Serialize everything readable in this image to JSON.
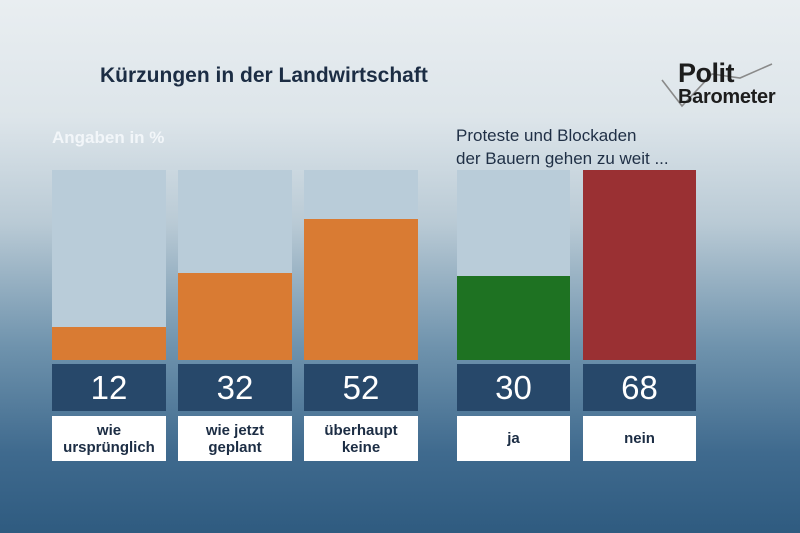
{
  "title": "Kürzungen in der Landwirtschaft",
  "logo": {
    "line1": "Polit",
    "line2": "Barometer"
  },
  "colors": {
    "track": "#b9ccd9",
    "orange": "#d97b33",
    "green": "#1e7222",
    "red": "#9a3033",
    "number_box": "#27486a",
    "title": "#1c2d44"
  },
  "chart_data": [
    {
      "type": "bar",
      "title": "Kürzungen in der Landwirtschaft",
      "unit_label": "Angaben in %",
      "categories": [
        "wie ursprünglich",
        "wie jetzt geplant",
        "überhaupt keine"
      ],
      "category_lines": [
        [
          "wie",
          "ursprünglich"
        ],
        [
          "wie jetzt",
          "geplant"
        ],
        [
          "überhaupt",
          "keine"
        ]
      ],
      "values": [
        12,
        32,
        52
      ],
      "color": "#d97b33",
      "ylim": [
        0,
        70
      ],
      "grid": false
    },
    {
      "type": "bar",
      "title": "Proteste und Blockaden der Bauern gehen zu weit ...",
      "title_lines": [
        "Proteste und Blockaden",
        "der Bauern gehen zu weit ..."
      ],
      "categories": [
        "ja",
        "nein"
      ],
      "category_lines": [
        [
          "ja"
        ],
        [
          "nein"
        ]
      ],
      "values": [
        30,
        68
      ],
      "colors": [
        "#1e7222",
        "#9a3033"
      ],
      "ylim": [
        0,
        68
      ],
      "grid": false
    }
  ]
}
